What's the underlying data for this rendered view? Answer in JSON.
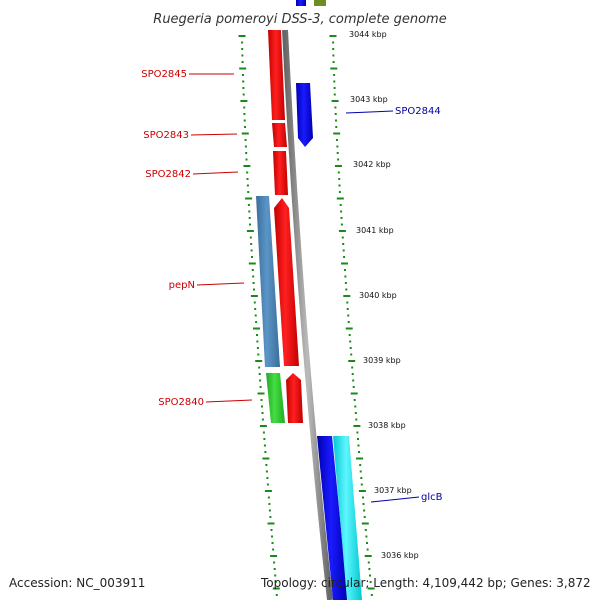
{
  "title": "Ruegeria pomeroyi DSS-3, complete genome",
  "footer": {
    "accession": "Accession: NC_003911",
    "stats": "Topology: circular; Length: 4,109,442 bp; Genes: 3,872"
  },
  "colors": {
    "forward_strand": "#ff0000",
    "reverse_strand": "#0000ff",
    "steelblue_gene": "#4682b4",
    "green_gene": "#33cc33",
    "cyan_gene": "#00e5ee",
    "backbone": "#888888",
    "tick": "#1a8a1a",
    "label_forward": "#cc0000",
    "label_reverse": "#0000aa"
  },
  "kbp_labels": [
    "3044 kbp",
    "3043 kbp",
    "3042 kbp",
    "3041 kbp",
    "3040 kbp",
    "3039 kbp",
    "3038 kbp",
    "3037 kbp",
    "3036 kbp"
  ],
  "left_labels": [
    "SPO2845",
    "SPO2843",
    "SPO2842",
    "pepN",
    "SPO2840"
  ],
  "right_labels": [
    "SPO2844",
    "glcB"
  ]
}
